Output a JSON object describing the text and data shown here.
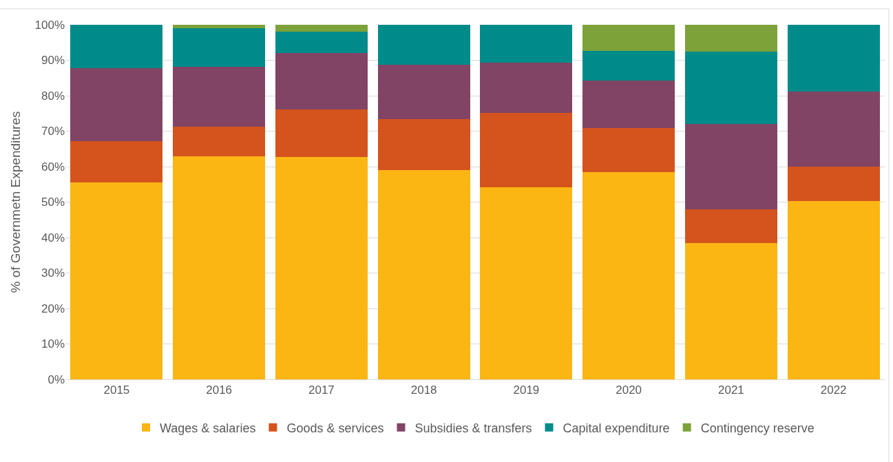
{
  "chart_data": {
    "type": "bar",
    "stacked": true,
    "ylabel": "% of Governmetn Expenditures",
    "categories": [
      "2015",
      "2016",
      "2017",
      "2018",
      "2019",
      "2020",
      "2021",
      "2022"
    ],
    "series": [
      {
        "name": "Wages & salaries",
        "color": "#fbb614",
        "values": [
          55.5,
          62.9,
          62.7,
          59.0,
          54.2,
          58.4,
          38.4,
          50.3
        ]
      },
      {
        "name": "Goods & services",
        "color": "#d5531d",
        "values": [
          11.7,
          8.4,
          13.4,
          14.4,
          20.9,
          12.5,
          9.6,
          9.7
        ]
      },
      {
        "name": "Subsidies & transfers",
        "color": "#824465",
        "values": [
          20.6,
          16.9,
          15.9,
          15.3,
          14.2,
          13.4,
          24.0,
          21.2
        ]
      },
      {
        "name": "Capital expenditure",
        "color": "#008b8b",
        "values": [
          12.2,
          10.8,
          6.1,
          11.3,
          10.7,
          8.3,
          20.4,
          18.8
        ]
      },
      {
        "name": "Contingency reserve",
        "color": "#7ca239",
        "values": [
          0,
          1.0,
          1.9,
          0,
          0,
          7.4,
          7.6,
          0
        ]
      }
    ],
    "ylim": [
      0,
      100
    ],
    "yticks": [
      {
        "value": 0,
        "label": "0%"
      },
      {
        "value": 10,
        "label": "10%"
      },
      {
        "value": 20,
        "label": "20%"
      },
      {
        "value": 30,
        "label": "30%"
      },
      {
        "value": 40,
        "label": "40%"
      },
      {
        "value": 50,
        "label": "50%"
      },
      {
        "value": 60,
        "label": "60%"
      },
      {
        "value": 70,
        "label": "70%"
      },
      {
        "value": 80,
        "label": "80%"
      },
      {
        "value": 90,
        "label": "90%"
      },
      {
        "value": 100,
        "label": "100%"
      }
    ],
    "grid": "y",
    "legend": "bottom"
  }
}
